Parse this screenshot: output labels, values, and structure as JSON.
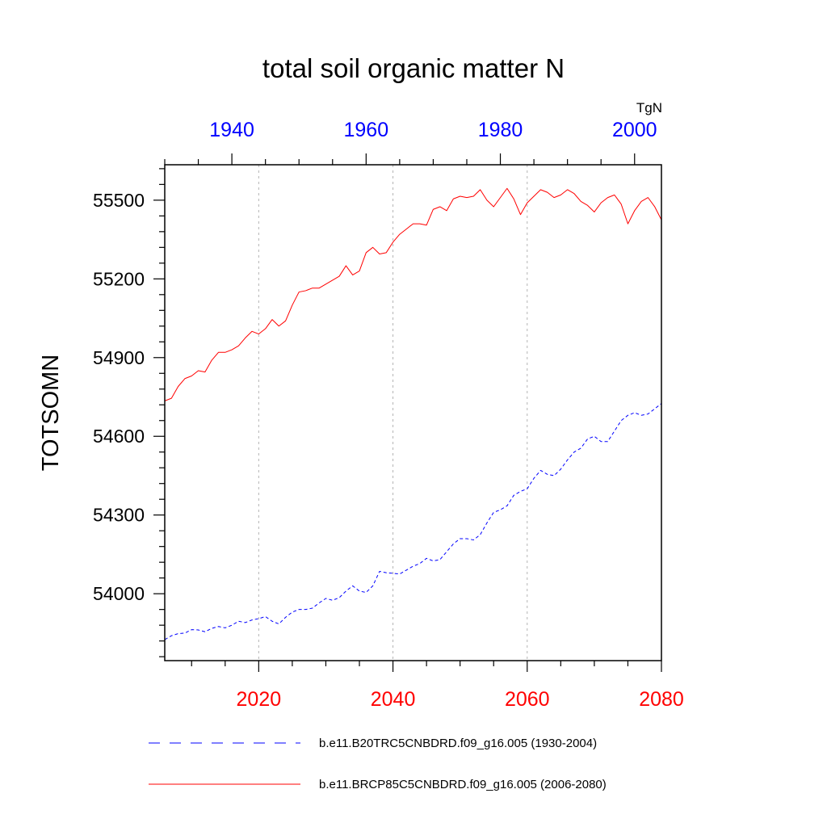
{
  "chart_data": {
    "type": "line",
    "title": "total soil organic matter N",
    "units": "TgN",
    "ylabel": "TOTSOMN",
    "ylim": [
      53745,
      55635
    ],
    "yticks": [
      54000,
      54300,
      54600,
      54900,
      55200,
      55500
    ],
    "bottom_axis": {
      "color": "#ff0000",
      "range": [
        2006,
        2080
      ],
      "ticks": [
        2020,
        2040,
        2060,
        2080
      ],
      "minor_step": 5,
      "gridlines": [
        2020,
        2040,
        2060
      ]
    },
    "top_axis": {
      "color": "#0000ff",
      "range": [
        1930,
        2004
      ],
      "ticks": [
        1940,
        1960,
        1980,
        2000
      ],
      "minor_step": 5
    },
    "series": [
      {
        "name": "b.e11.B20TRC5CNBDRD.f09_g16.005 (1930-2004)",
        "color": "#0000ff",
        "dash": "dashed",
        "axis": "top",
        "x_start": 1930,
        "values": [
          53825,
          53840,
          53848,
          53850,
          53863,
          53862,
          53855,
          53868,
          53875,
          53870,
          53880,
          53895,
          53890,
          53900,
          53905,
          53913,
          53895,
          53885,
          53910,
          53930,
          53940,
          53940,
          53945,
          53965,
          53982,
          53975,
          53985,
          54010,
          54030,
          54010,
          54005,
          54030,
          54085,
          54080,
          54078,
          54075,
          54090,
          54105,
          54115,
          54135,
          54125,
          54130,
          54160,
          54190,
          54210,
          54210,
          54205,
          54225,
          54270,
          54310,
          54320,
          54335,
          54375,
          54390,
          54400,
          54440,
          54470,
          54455,
          54450,
          54475,
          54510,
          54540,
          54555,
          54590,
          54600,
          54580,
          54580,
          54620,
          54660,
          54680,
          54690,
          54680,
          54685,
          54705,
          54725
        ]
      },
      {
        "name": "b.e11.BRCP85C5CNBDRD.f09_g16.005 (2006-2080)",
        "color": "#ff0000",
        "dash": "solid",
        "axis": "bottom",
        "x_start": 2006,
        "values": [
          54735,
          54745,
          54790,
          54820,
          54830,
          54850,
          54845,
          54890,
          54920,
          54920,
          54930,
          54945,
          54975,
          55000,
          54990,
          55010,
          55045,
          55020,
          55040,
          55100,
          55150,
          55155,
          55165,
          55165,
          55180,
          55195,
          55210,
          55250,
          55215,
          55230,
          55300,
          55320,
          55295,
          55300,
          55340,
          55370,
          55390,
          55410,
          55410,
          55405,
          55465,
          55475,
          55460,
          55505,
          55515,
          55510,
          55515,
          55540,
          55500,
          55475,
          55510,
          55545,
          55505,
          55445,
          55490,
          55515,
          55540,
          55530,
          55510,
          55520,
          55540,
          55525,
          55495,
          55480,
          55455,
          55490,
          55510,
          55520,
          55485,
          55410,
          55460,
          55495,
          55510,
          55475,
          55425
        ]
      }
    ]
  }
}
